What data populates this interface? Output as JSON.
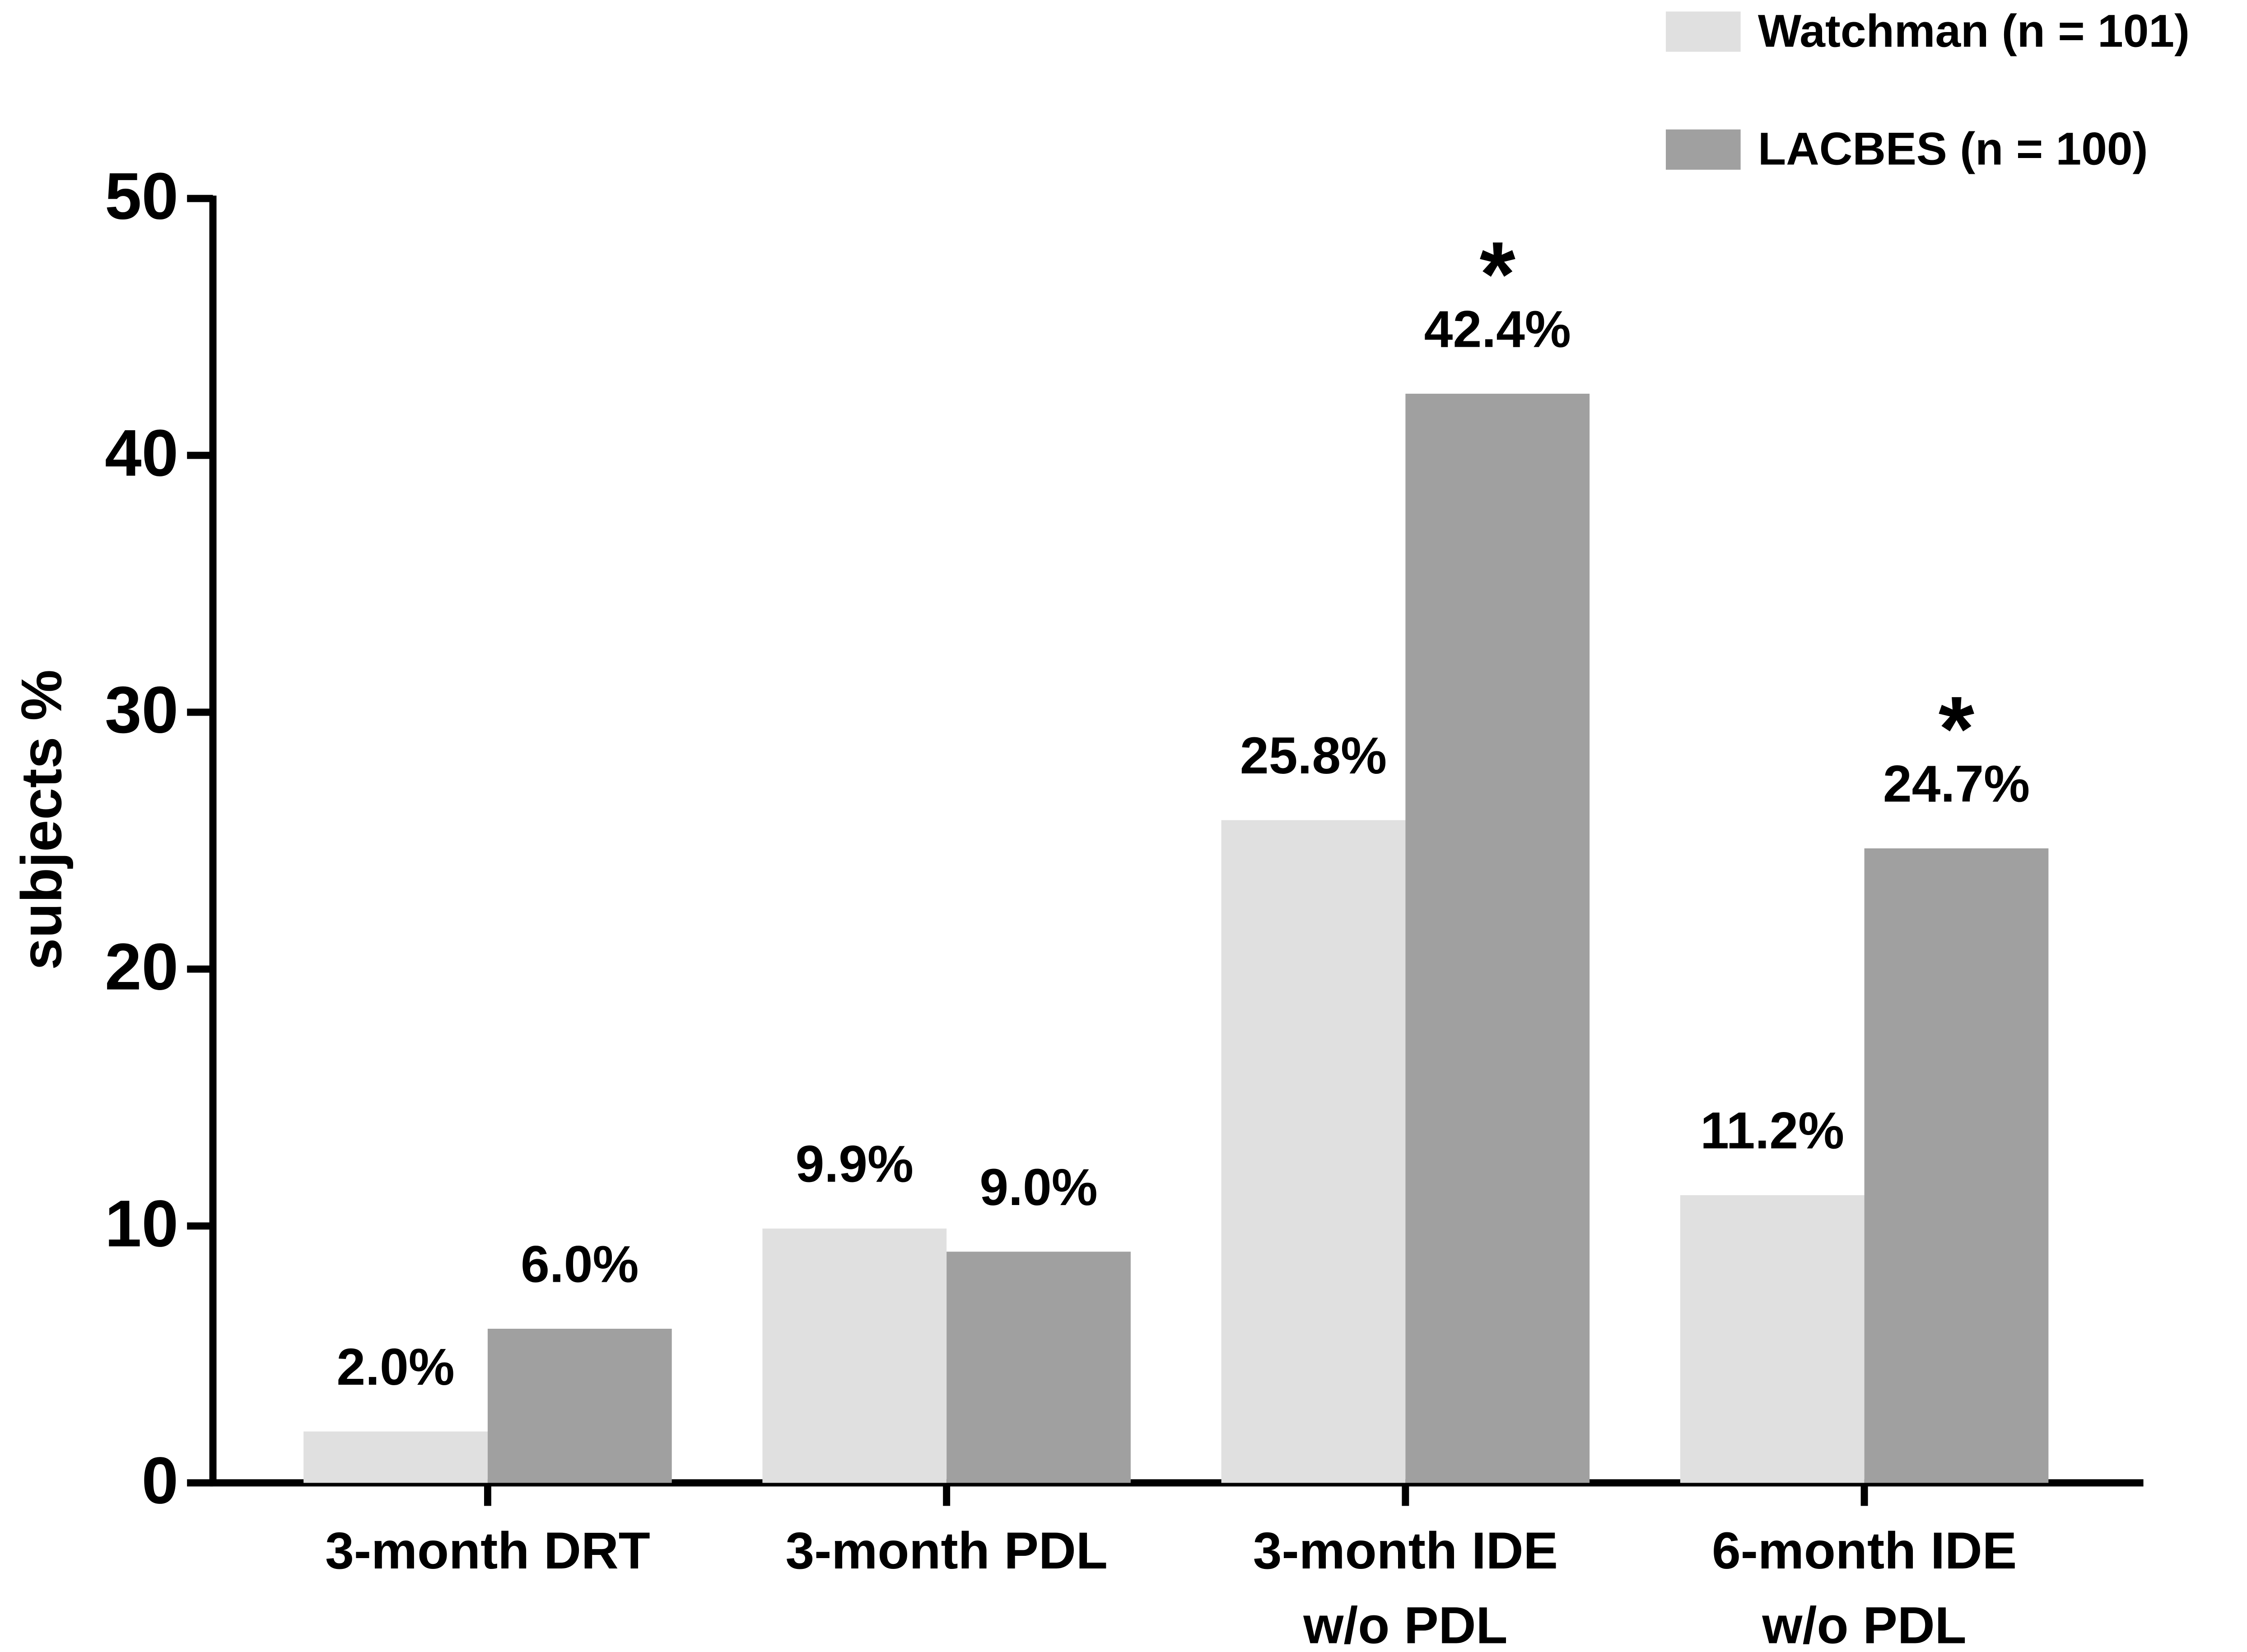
{
  "chart_data": {
    "type": "bar",
    "y_label": "subjects %",
    "categories": [
      [
        "3-month DRT"
      ],
      [
        "3-month PDL"
      ],
      [
        "3-month IDE",
        "w/o PDL"
      ],
      [
        "6-month IDE",
        "w/o PDL"
      ]
    ],
    "series": [
      {
        "name": "Watchman (n = 101)",
        "color": "#e0e0e0",
        "values": [
          2.0,
          9.9,
          25.8,
          11.2
        ],
        "value_labels": [
          "2.0%",
          "9.9%",
          "25.8%",
          "11.2%"
        ]
      },
      {
        "name": "LACBES (n = 100)",
        "color": "#a0a0a0",
        "values": [
          6.0,
          9.0,
          42.4,
          24.7
        ],
        "value_labels": [
          "6.0%",
          "9.0%",
          "42.4%",
          "24.7%"
        ],
        "marks": [
          null,
          null,
          "*",
          "*"
        ]
      }
    ],
    "ylim": [
      0,
      50
    ],
    "yticks": [
      0,
      10,
      20,
      30,
      40,
      50
    ],
    "grid": false,
    "legend": "top-right"
  }
}
